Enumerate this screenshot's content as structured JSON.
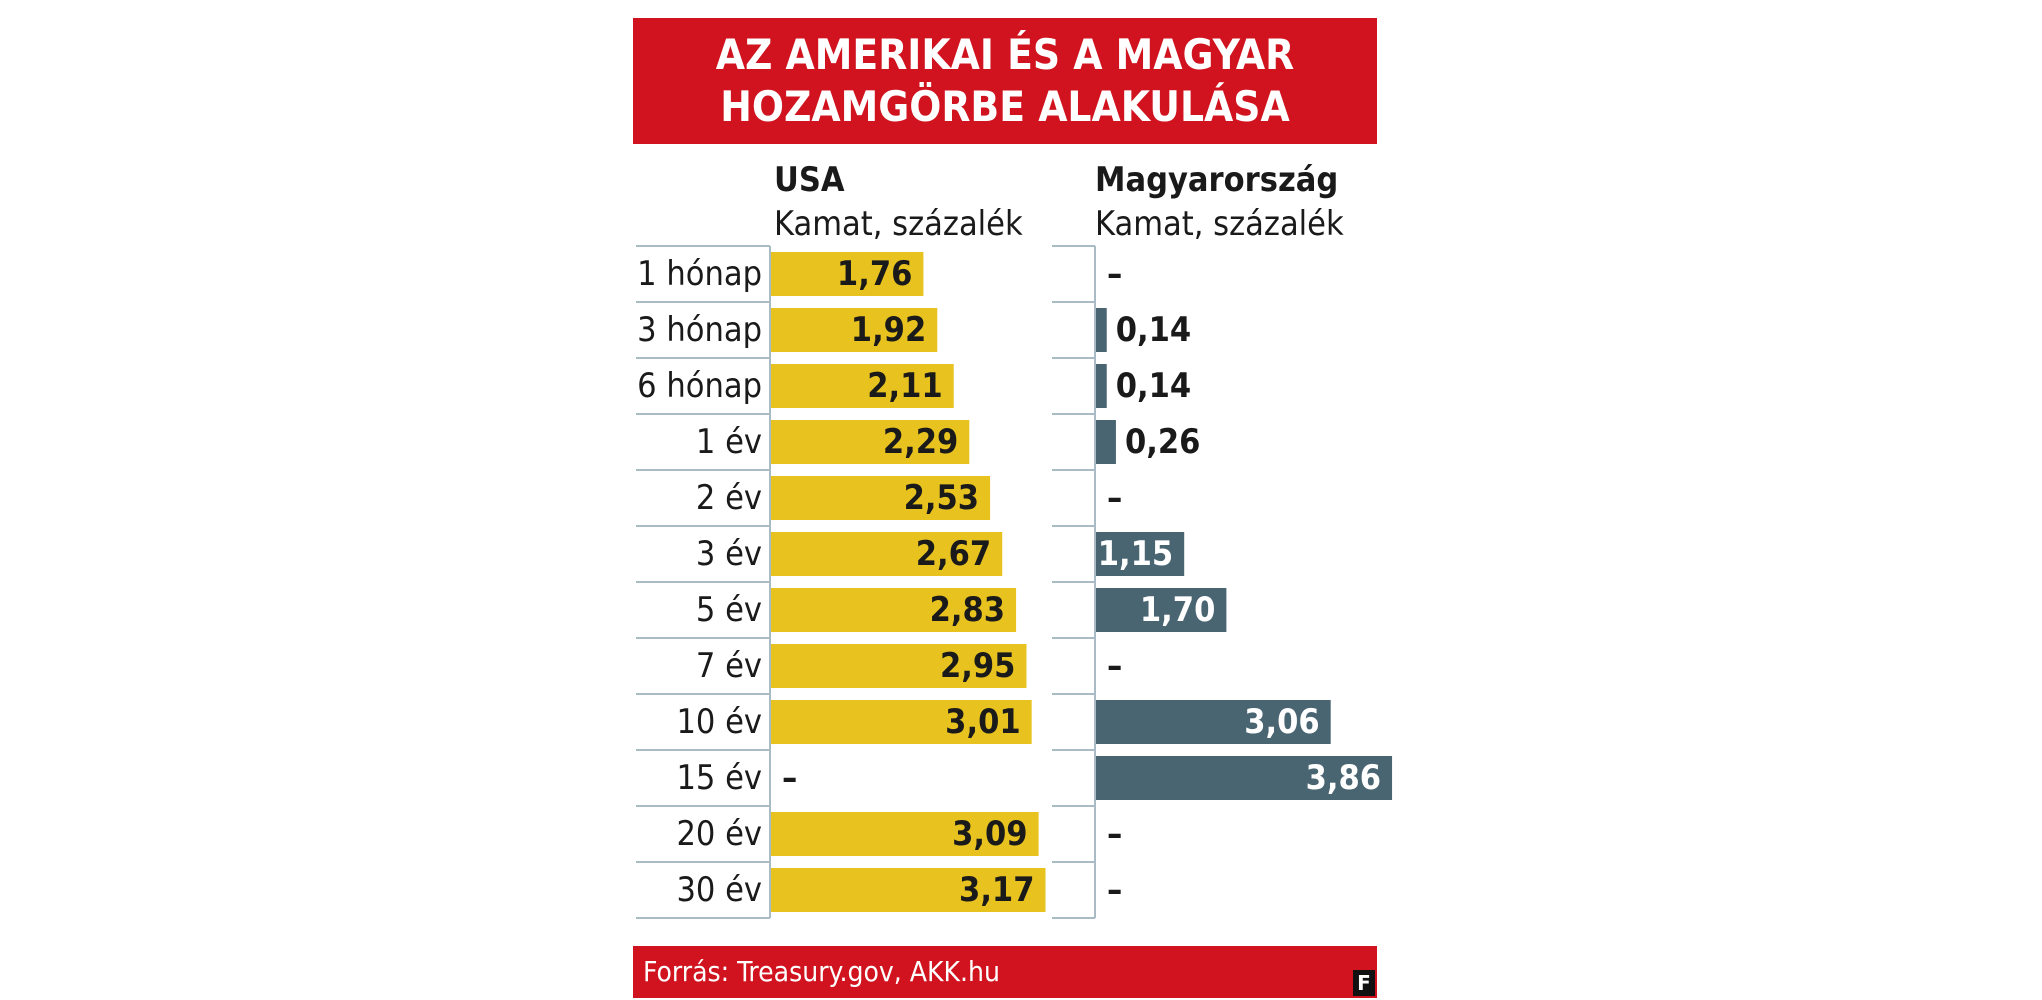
{
  "title_lines": [
    "AZ AMERIKAI ÉS A MAGYAR",
    "HOZAMGÖRBE ALAKULÁSA"
  ],
  "source": "Forrás: Treasury.gov, AKK.hu",
  "logo_letter": "F",
  "colors": {
    "banner": "#d0131e",
    "usa_bar": "#e8c31f",
    "hu_bar": "#4a6572",
    "grid": "#a9bcc6"
  },
  "chart_data": {
    "type": "bar",
    "categories": [
      "1 hónap",
      "3 hónap",
      "6 hónap",
      "1 év",
      "2 év",
      "3 év",
      "5 év",
      "7 év",
      "10 év",
      "15 év",
      "20 év",
      "30 év"
    ],
    "missing_label": "–",
    "series": [
      {
        "name": "USA",
        "unit_label": "Kamat, százalék",
        "values": [
          1.76,
          1.92,
          2.11,
          2.29,
          2.53,
          2.67,
          2.83,
          2.95,
          3.01,
          null,
          3.09,
          3.17
        ],
        "labels": [
          "1,76",
          "1,92",
          "2,11",
          "2,29",
          "2,53",
          "2,67",
          "2,83",
          "2,95",
          "3,01",
          "–",
          "3,09",
          "3,17"
        ]
      },
      {
        "name": "Magyarország",
        "unit_label": "Kamat, százalék",
        "values": [
          null,
          0.14,
          0.14,
          0.26,
          null,
          1.15,
          1.7,
          null,
          3.06,
          3.86,
          null,
          null
        ],
        "labels": [
          "–",
          "0,14",
          "0,14",
          "0,26",
          "–",
          "1,15",
          "1,70",
          "–",
          "3,06",
          "3,86",
          "–",
          "–"
        ]
      }
    ]
  }
}
